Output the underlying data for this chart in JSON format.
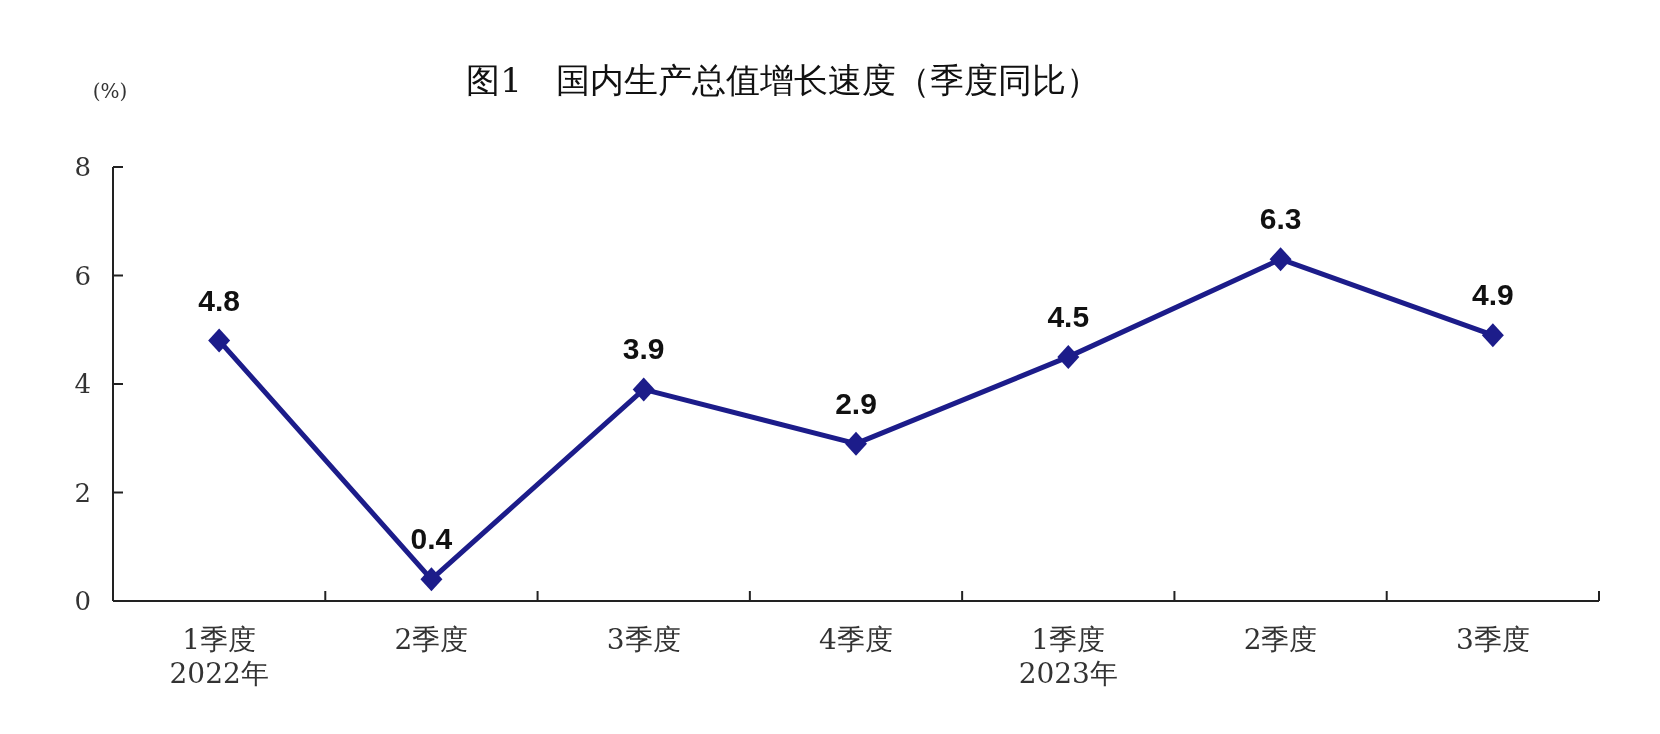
{
  "chart_data": {
    "type": "line",
    "title": "图1　国内生产总值增长速度（季度同比）",
    "ylabel": "(%)",
    "categories": [
      "1季度\n2022年",
      "2季度",
      "3季度",
      "4季度",
      "1季度\n2023年",
      "2季度",
      "3季度"
    ],
    "series": [
      {
        "color": "#1c1c8a",
        "values": [
          4.8,
          0.4,
          3.9,
          2.9,
          4.5,
          6.3,
          4.9
        ]
      }
    ],
    "ylim": [
      0,
      8
    ],
    "yticks": [
      0,
      2,
      4,
      6,
      8
    ],
    "data_labels": true,
    "marker": "diamond",
    "line_style": "solid"
  }
}
